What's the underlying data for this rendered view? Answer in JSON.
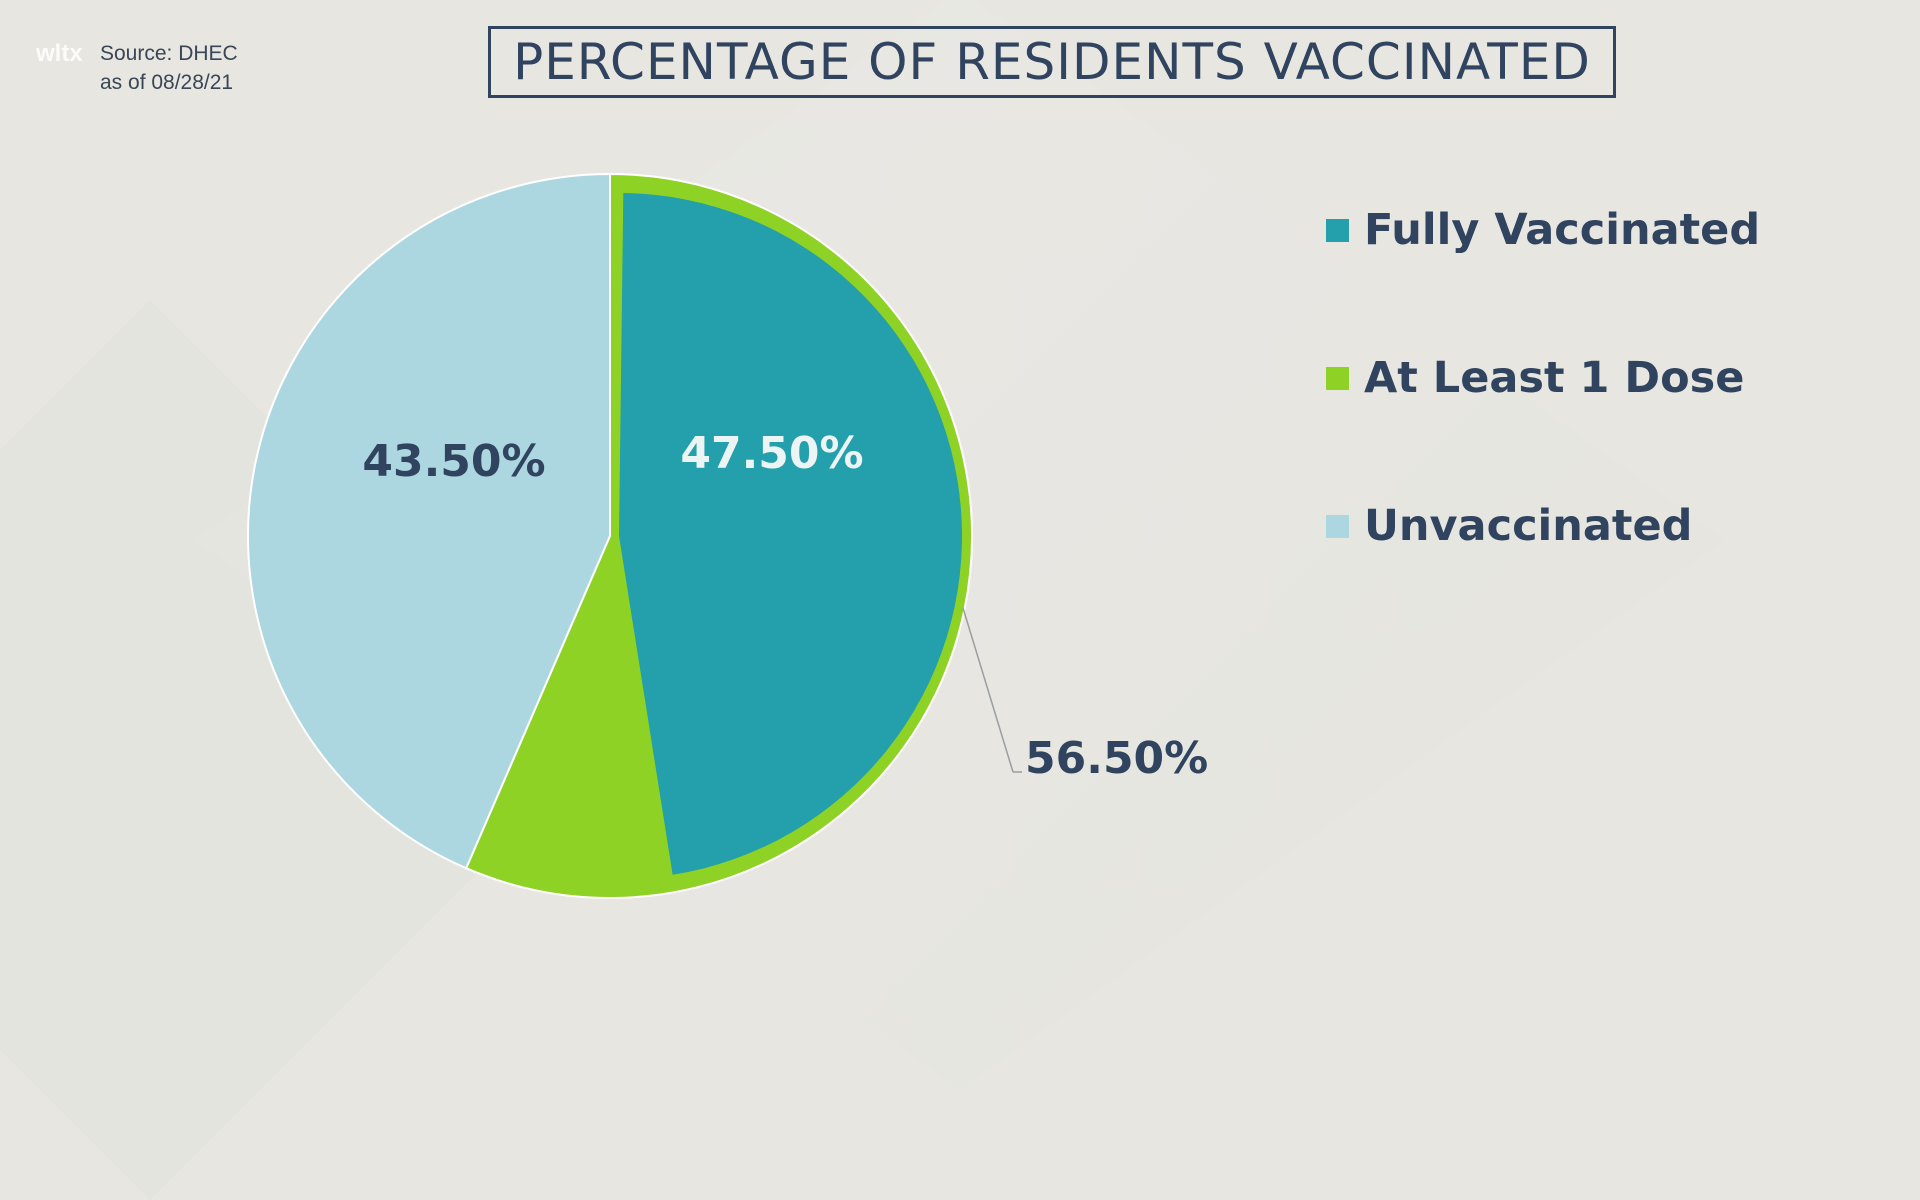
{
  "header": {
    "logo": "wltx",
    "source_line1": "Source: DHEC",
    "source_line2": "as of 08/28/21",
    "title": "PERCENTAGE OF RESIDENTS VACCINATED"
  },
  "colors": {
    "fully": "#23a0ab",
    "at_least_one": "#8ed226",
    "unvaccinated": "#acd6e0",
    "text_dark": "#30435f",
    "text_light": "#ecf4f4"
  },
  "chart_data": {
    "type": "pie",
    "title": "PERCENTAGE OF RESIDENTS VACCINATED",
    "slices": [
      {
        "name": "Fully Vaccinated",
        "value": 47.5,
        "label": "47.50%",
        "color": "#23a0ab"
      },
      {
        "name": "At Least 1 Dose",
        "value": 56.5,
        "label": "56.50%",
        "color": "#8ed226"
      },
      {
        "name": "Unvaccinated",
        "value": 43.5,
        "label": "43.50%",
        "color": "#acd6e0"
      }
    ],
    "legend": [
      "Fully Vaccinated",
      "At Least 1 Dose",
      "Unvaccinated"
    ],
    "legend_position": "right"
  }
}
